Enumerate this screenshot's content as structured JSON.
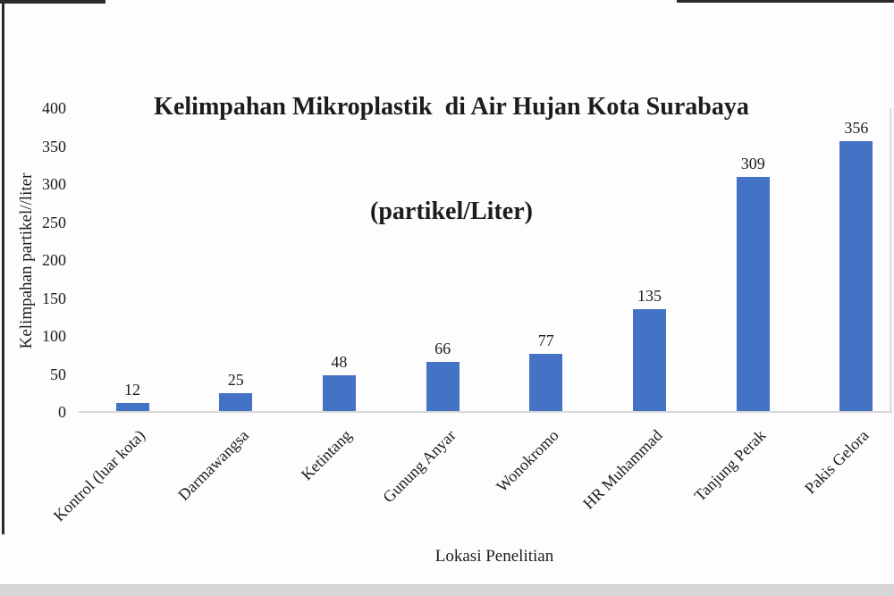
{
  "chart_data": {
    "type": "bar",
    "title": "Kelimpahan Mikroplastik  di Air Hujan Kota Surabaya (partikel/Liter)",
    "title_line1": "Kelimpahan Mikroplastik  di Air Hujan Kota Surabaya",
    "title_line2": "(partikel/Liter)",
    "categories": [
      "Kontrol (luar kota)",
      "Darmawangsa",
      "Ketintang",
      "Gunung Anyar",
      "Wonokromo",
      "HR Muhammad",
      "Tanjung Perak",
      "Pakis Gelora"
    ],
    "values": [
      12,
      25,
      48,
      66,
      77,
      135,
      309,
      356
    ],
    "xlabel": "Lokasi Penelitian",
    "ylabel": "Kelimpahan partikel//liter",
    "y_ticks": [
      0,
      50,
      100,
      150,
      200,
      250,
      300,
      350,
      400
    ],
    "ylim": [
      0,
      400
    ],
    "grid": "off",
    "legend": "none",
    "bar_color": "#4472C4",
    "axis_line_color": "#d8d8d8",
    "plot_right_border_color": "#dcdcdc",
    "text_color": "#1c1c1c"
  },
  "frame": {
    "border_color": "#2a2a2a",
    "bottom_strip_color": "#d6d6d6",
    "bottom_strip_edge_color": "#c2c2c2",
    "page_background": "#fdfdfd"
  }
}
